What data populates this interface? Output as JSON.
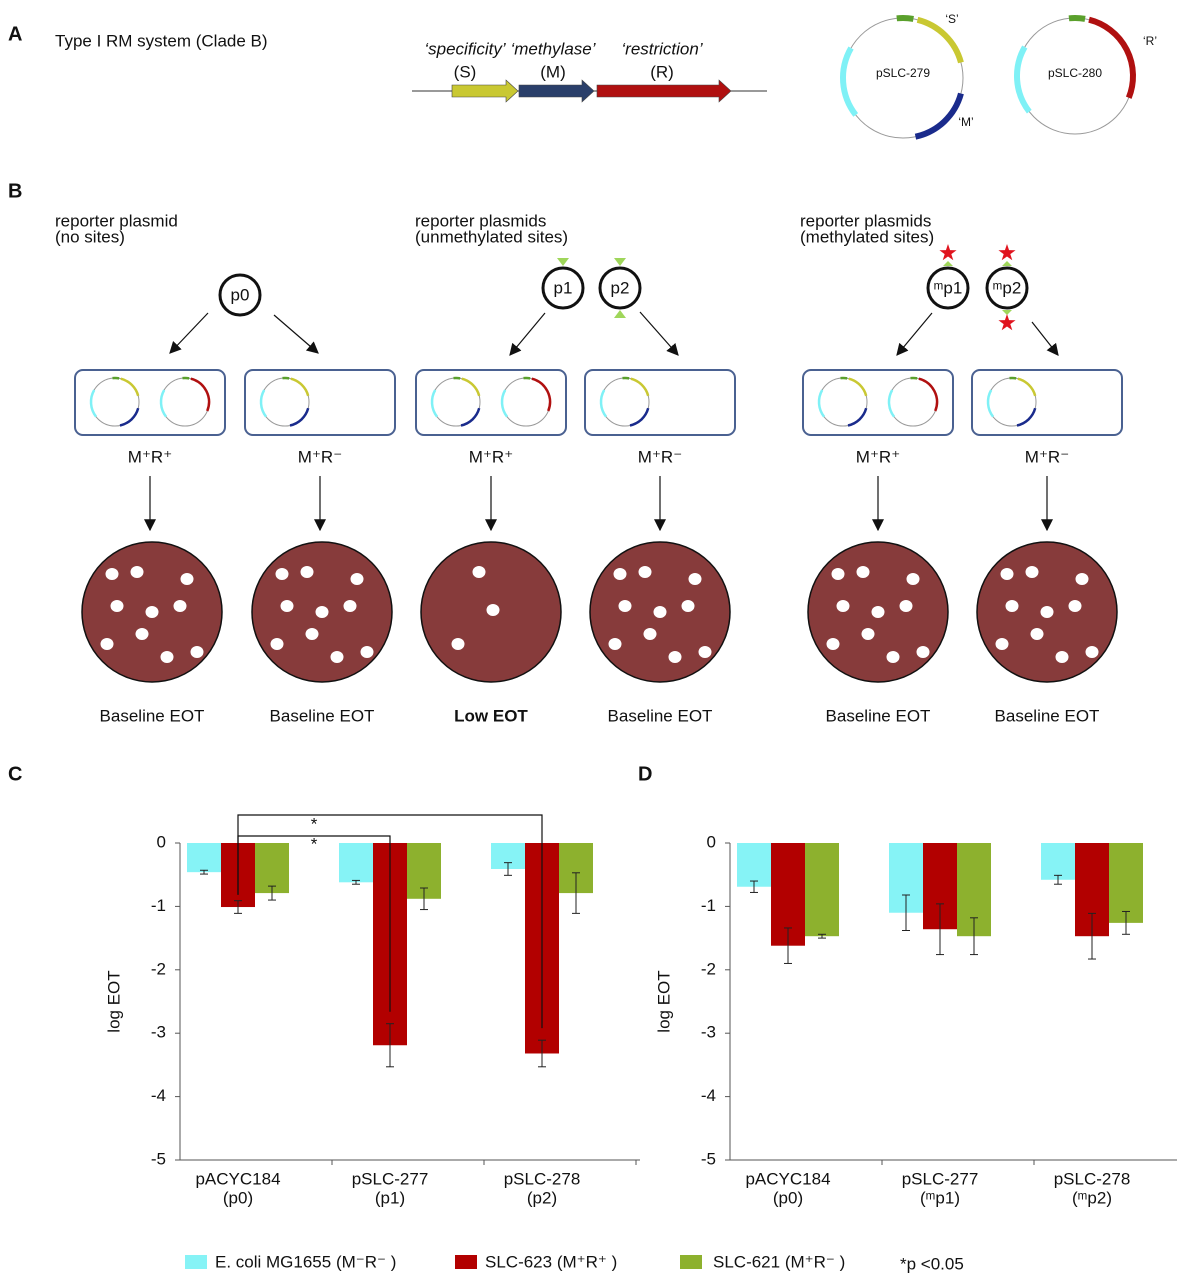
{
  "panel_labels": [
    "A",
    "B",
    "C",
    "D"
  ],
  "panel_a": {
    "title": "Type I RM system (Clade B)",
    "genes": [
      {
        "name": "‘specificity’",
        "abbr": "(S)"
      },
      {
        "name": "‘methylase’",
        "abbr": "(M)"
      },
      {
        "name": "‘restriction’",
        "abbr": "(R)"
      }
    ],
    "plasmids": [
      {
        "name": "pSLC-279",
        "labels": [
          "‘S’",
          "‘M’"
        ]
      },
      {
        "name": "pSLC-280",
        "labels": [
          "‘R’"
        ]
      }
    ]
  },
  "panel_b": {
    "groups": [
      {
        "heading": [
          "reporter plasmid",
          "(no sites)"
        ],
        "plasmids": [
          "p0"
        ],
        "hosts": [
          {
            "genotype": "M⁺R⁺",
            "outcome": "Baseline EOT"
          },
          {
            "genotype": "M⁺R⁻",
            "outcome": "Baseline EOT"
          }
        ]
      },
      {
        "heading": [
          "reporter plasmids",
          "(unmethylated sites)"
        ],
        "plasmids": [
          "p1",
          "p2"
        ],
        "hosts": [
          {
            "genotype": "M⁺R⁺",
            "outcome": "Low EOT"
          },
          {
            "genotype": "M⁺R⁻",
            "outcome": "Baseline EOT"
          }
        ]
      },
      {
        "heading": [
          "reporter plasmids",
          "(methylated sites)"
        ],
        "plasmids": [
          "ᵐp1",
          "ᵐp2"
        ],
        "hosts": [
          {
            "genotype": "M⁺R⁺",
            "outcome": "Baseline EOT"
          },
          {
            "genotype": "M⁺R⁻",
            "outcome": "Baseline EOT"
          }
        ]
      }
    ]
  },
  "chart_data": [
    {
      "type": "bar",
      "y_label": "log EOT",
      "categories": [
        [
          "pACYC184",
          "(p0)"
        ],
        [
          "pSLC-277",
          "(p1)"
        ],
        [
          "pSLC-278",
          "(p2)"
        ]
      ],
      "ylim": [
        -5,
        0
      ],
      "yticks": [
        0,
        -1,
        -2,
        -3,
        -4,
        -5
      ],
      "annotations": [
        "*",
        "*"
      ],
      "series": [
        {
          "name": "E. coli MG1655 (M⁻R⁻ )",
          "color": "#86f3f6",
          "values": [
            -0.46,
            -0.62,
            -0.41
          ],
          "errors": [
            0.03,
            0.03,
            0.1
          ]
        },
        {
          "name": "SLC-623 (M⁺R⁺ )",
          "color": "#b20000",
          "values": [
            -1.01,
            -3.19,
            -3.32
          ],
          "errors": [
            0.1,
            0.34,
            0.21
          ]
        },
        {
          "name": "SLC-621 (M⁺R⁻ )",
          "color": "#8db12e",
          "values": [
            -0.79,
            -0.88,
            -0.79
          ],
          "errors": [
            0.11,
            0.17,
            0.32
          ]
        }
      ]
    },
    {
      "type": "bar",
      "y_label": "log EOT",
      "categories": [
        [
          "pACYC184",
          "(p0)"
        ],
        [
          "pSLC-277",
          "(ᵐp1)"
        ],
        [
          "pSLC-278",
          "(ᵐp2)"
        ]
      ],
      "ylim": [
        -5,
        0
      ],
      "yticks": [
        0,
        -1,
        -2,
        -3,
        -4,
        -5
      ],
      "series": [
        {
          "color": "#86f3f6",
          "values": [
            -0.69,
            -1.1,
            -0.58
          ],
          "errors": [
            0.09,
            0.28,
            0.07
          ]
        },
        {
          "color": "#b20000",
          "values": [
            -1.62,
            -1.36,
            -1.47
          ],
          "errors": [
            0.28,
            0.4,
            0.36
          ]
        },
        {
          "color": "#8db12e",
          "values": [
            -1.47,
            -1.47,
            -1.26
          ],
          "errors": [
            0.03,
            0.29,
            0.18
          ]
        }
      ]
    }
  ],
  "note": "*p <0.05"
}
